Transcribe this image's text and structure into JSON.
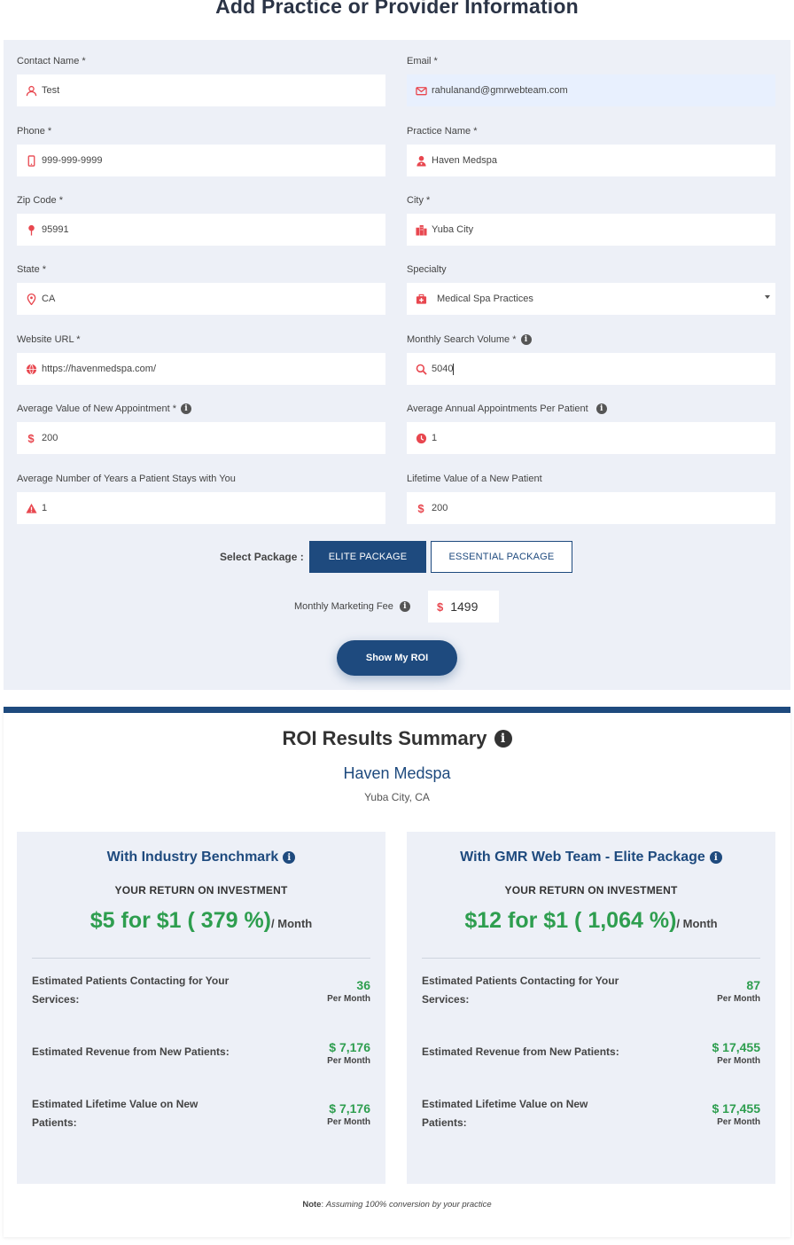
{
  "page_title": "Add Practice or Provider Information",
  "form": {
    "contact_name": {
      "label": "Contact Name *",
      "value": "Test",
      "icon": "user-icon"
    },
    "email": {
      "label": "Email *",
      "value": "rahulanand@gmrwebteam.com",
      "icon": "envelope-icon"
    },
    "phone": {
      "label": "Phone *",
      "value": "999-999-9999",
      "icon": "mobile-icon"
    },
    "practice_name": {
      "label": "Practice Name *",
      "value": "Haven Medspa",
      "icon": "doctor-icon"
    },
    "zip_code": {
      "label": "Zip Code *",
      "value": "95991",
      "icon": "pin-icon"
    },
    "city": {
      "label": "City *",
      "value": "Yuba City",
      "icon": "city-icon"
    },
    "state": {
      "label": "State *",
      "value": "CA",
      "icon": "location-marker-icon"
    },
    "specialty": {
      "label": "Specialty",
      "value": "Medical Spa Practices",
      "icon": "medkit-icon"
    },
    "website": {
      "label": "Website URL *",
      "value": "https://havenmedspa.com/",
      "icon": "globe-icon"
    },
    "search_volume": {
      "label": "Monthly Search Volume *",
      "value": "5040",
      "icon": "search-icon"
    },
    "avg_value": {
      "label": "Average Value of New Appointment *",
      "value": "200",
      "icon": "dollar-icon"
    },
    "annual_appts": {
      "label": "Average Annual Appointments Per Patient",
      "value": "1",
      "icon": "clock-icon"
    },
    "years_stay": {
      "label": "Average Number of Years a Patient Stays with You",
      "value": "1",
      "icon": "alert-icon"
    },
    "lifetime_value": {
      "label": "Lifetime Value of a New Patient",
      "value": "200",
      "icon": "dollar-icon"
    }
  },
  "package": {
    "label": "Select Package :",
    "elite": "ELITE PACKAGE",
    "essential": "ESSENTIAL PACKAGE"
  },
  "fee": {
    "label": "Monthly Marketing Fee",
    "currency": "$",
    "value": "1499"
  },
  "roi_button": "Show My ROI",
  "results": {
    "title": "ROI Results Summary",
    "practice": "Haven Medspa",
    "location": "Yuba City, CA",
    "cards": [
      {
        "heading": "With Industry Benchmark",
        "subheading": "YOUR RETURN ON INVESTMENT",
        "roi": "$5 for $1 ( 379 %)",
        "per": "/ Month",
        "stats": [
          {
            "label": "Estimated Patients Contacting for Your Services:",
            "value": "36",
            "unit": "Per Month"
          },
          {
            "label": "Estimated Revenue from New Patients:",
            "value": "$ 7,176",
            "unit": "Per Month"
          },
          {
            "label": "Estimated Lifetime Value on New Patients:",
            "value": "$ 7,176",
            "unit": "Per Month"
          }
        ]
      },
      {
        "heading": "With GMR Web Team - Elite Package",
        "subheading": "YOUR RETURN ON INVESTMENT",
        "roi": "$12 for $1 ( 1,064 %)",
        "per": "/ Month",
        "stats": [
          {
            "label": "Estimated Patients Contacting for Your Services:",
            "value": "87",
            "unit": "Per Month"
          },
          {
            "label": "Estimated Revenue from New Patients:",
            "value": "$ 17,455",
            "unit": "Per Month"
          },
          {
            "label": "Estimated Lifetime Value on New Patients:",
            "value": "$ 17,455",
            "unit": "Per Month"
          }
        ]
      }
    ],
    "note_label": "Note",
    "note_text": ": ",
    "note_italic": "Assuming 100% conversion by your practice"
  },
  "colors": {
    "accent": "#1e4a7e",
    "icon_red": "#e8474f",
    "positive_green": "#2e9e4f",
    "panel_bg": "#edf0f7"
  }
}
